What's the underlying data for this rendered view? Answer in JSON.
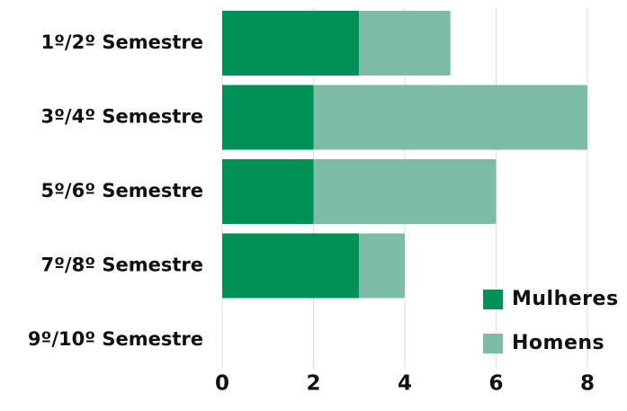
{
  "chart_data": {
    "type": "bar",
    "orientation": "horizontal",
    "stacked": true,
    "categories": [
      "1º/2º Semestre",
      "3º/4º Semestre",
      "5º/6º Semestre",
      "7º/8º Semestre",
      "9º/10º Semestre"
    ],
    "series": [
      {
        "name": "Mulheres",
        "values": [
          3,
          2,
          2,
          3,
          0
        ],
        "color": "#009157"
      },
      {
        "name": "Homens",
        "values": [
          2,
          6,
          4,
          1,
          0
        ],
        "color": "#7dbda8"
      }
    ],
    "xticks": [
      "0",
      "2",
      "4",
      "6",
      "8"
    ],
    "xlim": [
      0,
      8
    ],
    "grid": true,
    "legend_position": "bottom-right",
    "title": "",
    "xlabel": "",
    "ylabel": ""
  }
}
